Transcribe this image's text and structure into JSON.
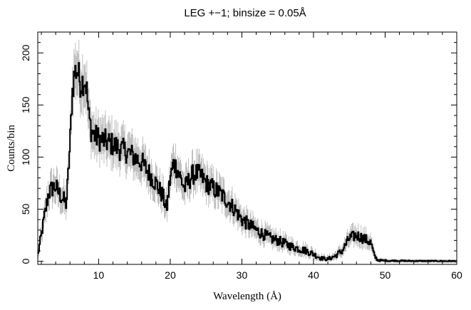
{
  "chart_data": {
    "type": "line",
    "title": "LEG +−1; binsize = 0.05Å",
    "xlabel": "Wavelength (Å)",
    "ylabel": "Counts/bin",
    "xlim": [
      1.5,
      60
    ],
    "ylim": [
      -3,
      220
    ],
    "x_ticks": [
      10,
      20,
      30,
      40,
      50,
      60
    ],
    "x_tick_labels": [
      "10",
      "20",
      "30",
      "40",
      "50",
      "60"
    ],
    "y_ticks": [
      0,
      50,
      100,
      150,
      200
    ],
    "y_tick_labels": [
      "0",
      "50",
      "100",
      "150",
      "200"
    ],
    "grid": false,
    "legend": "none",
    "colors": {
      "series": "#000000",
      "error_bars": "#b0b0b0",
      "axes": "#000000"
    },
    "series": [
      {
        "style": "histogram with error bars",
        "x": [
          1.5,
          2.0,
          2.5,
          3.0,
          3.5,
          4.0,
          4.5,
          5.0,
          5.5,
          6.0,
          6.3,
          6.6,
          7.0,
          7.5,
          8.0,
          8.3,
          8.6,
          9.0,
          9.5,
          10.0,
          11.0,
          12.0,
          13.0,
          14.0,
          15.0,
          16.0,
          17.0,
          18.0,
          19.0,
          19.5,
          20.0,
          20.5,
          21.0,
          22.0,
          23.0,
          23.5,
          24.0,
          24.5,
          25.0,
          26.0,
          27.0,
          28.0,
          29.0,
          30.0,
          31.0,
          32.0,
          33.0,
          34.0,
          35.0,
          36.0,
          37.0,
          38.0,
          39.0,
          40.0,
          41.0,
          42.0,
          43.0,
          44.0,
          45.0,
          46.0,
          47.0,
          48.0,
          48.5,
          49.0,
          50.0,
          55.0,
          60.0
        ],
        "y": [
          5,
          25,
          45,
          65,
          70,
          72,
          65,
          60,
          55,
          110,
          160,
          180,
          185,
          170,
          175,
          168,
          140,
          125,
          120,
          118,
          115,
          112,
          108,
          105,
          100,
          95,
          85,
          75,
          62,
          50,
          80,
          95,
          88,
          70,
          82,
          85,
          83,
          80,
          75,
          70,
          65,
          58,
          50,
          40,
          35,
          30,
          26,
          22,
          20,
          17,
          14,
          12,
          10,
          7,
          3,
          2,
          5,
          10,
          22,
          25,
          22,
          18,
          5,
          1,
          0.5,
          0.2,
          0.1
        ]
      }
    ]
  }
}
